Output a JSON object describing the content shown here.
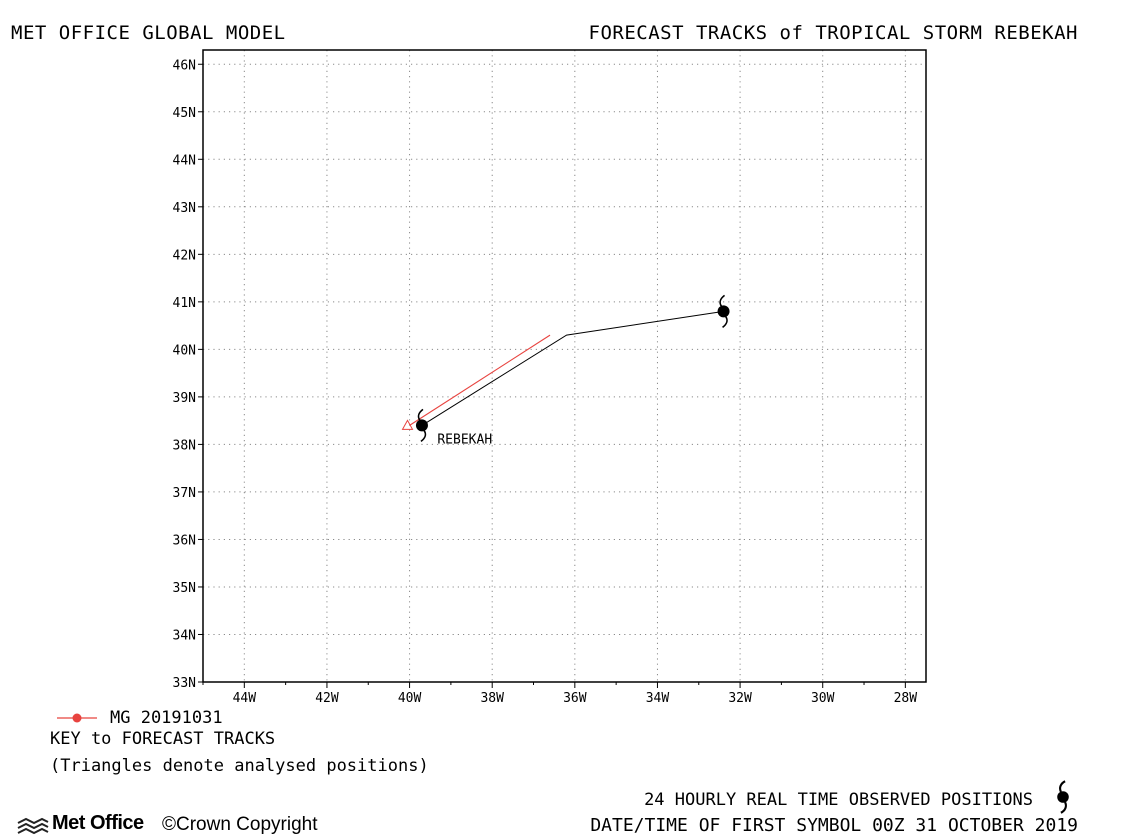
{
  "header": {
    "left_title": "MET OFFICE GLOBAL MODEL",
    "right_title": "FORECAST TRACKS of TROPICAL STORM REBEKAH"
  },
  "chart_data": {
    "type": "line",
    "map": "lat-lon track plot",
    "xlim": [
      -45,
      -27.5
    ],
    "ylim": [
      33,
      46.3
    ],
    "x_ticks": [
      -44,
      -42,
      -40,
      -38,
      -36,
      -34,
      -32,
      -30,
      -28
    ],
    "x_tick_labels": [
      "44W",
      "42W",
      "40W",
      "38W",
      "36W",
      "34W",
      "32W",
      "30W",
      "28W"
    ],
    "y_ticks": [
      33,
      34,
      35,
      36,
      37,
      38,
      39,
      40,
      41,
      42,
      43,
      44,
      45,
      46
    ],
    "y_tick_labels": [
      "33N",
      "34N",
      "35N",
      "36N",
      "37N",
      "38N",
      "39N",
      "40N",
      "41N",
      "42N",
      "43N",
      "44N",
      "45N",
      "46N"
    ],
    "grid": true,
    "grid_style": "dotted",
    "observed_track": {
      "color": "#000000",
      "points": [
        [
          -32.4,
          40.8
        ],
        [
          -36.2,
          40.3
        ],
        [
          -39.7,
          38.4
        ]
      ]
    },
    "storm_symbols": [
      [
        -32.4,
        40.8
      ],
      [
        -39.7,
        38.4
      ]
    ],
    "storm_label": {
      "text": "REBEKAH",
      "lon": -39.4,
      "lat": 38.1
    },
    "forecast_tracks": [
      {
        "name": "MG 20191031",
        "color": "#e8433f",
        "points": [
          [
            -36.6,
            40.3
          ],
          [
            -40.0,
            38.4
          ]
        ]
      }
    ],
    "analysed_positions": [
      [
        -40.05,
        38.4
      ]
    ]
  },
  "legend": {
    "label": "MG 20191031",
    "line_color": "#e8433f",
    "key_title": "KEY to FORECAST TRACKS",
    "key_note": "(Triangles denote analysed positions)"
  },
  "footer": {
    "brand": "Met Office",
    "copyright": "©Crown Copyright",
    "observed_text": "24 HOURLY REAL TIME OBSERVED POSITIONS",
    "datetime_text": "DATE/TIME OF FIRST SYMBOL 00Z 31 OCTOBER 2019"
  }
}
